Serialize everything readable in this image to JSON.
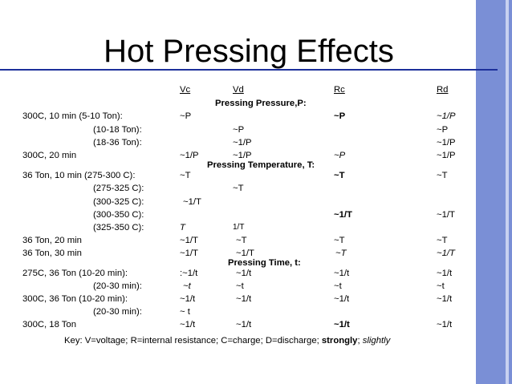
{
  "title": "Hot Pressing Effects",
  "headers": [
    "Vc",
    "Vd",
    "Rc",
    "Rd"
  ],
  "sections": {
    "pressure": "Pressing Pressure,P:",
    "temperature": "Pressing Temperature, T:",
    "time": "Pressing Time, t:"
  },
  "rows": [
    {
      "label": "300C, 10 min  (5-10 Ton):",
      "vc": "~P",
      "vd": "",
      "rc": "~P",
      "rd": "~1/P"
    },
    {
      "label": "(10-18 Ton):",
      "vc": "",
      "vd": "~P",
      "rc": "",
      "rd": "~P"
    },
    {
      "label": "(18-36 Ton):",
      "vc": "",
      "vd": "~1/P",
      "rc": "",
      "rd": "~1/P"
    },
    {
      "label": "300C, 20 min",
      "vc": "~1/P",
      "vd": "~1/P",
      "rc": "~P",
      "rd": "~1/P"
    },
    {
      "label": "36 Ton, 10 min (275-300 C):",
      "vc": "~T",
      "vd": "",
      "rc": "~T",
      "rd": "~T"
    },
    {
      "label": "(275-325 C):",
      "vc": "",
      "vd": "~T",
      "rc": "",
      "rd": ""
    },
    {
      "label": "(300-325 C):",
      "vc": "~1/T",
      "vd": "",
      "rc": "",
      "rd": ""
    },
    {
      "label": "(300-350 C):",
      "vc": "",
      "vd": "",
      "rc": "~1/T",
      "rd": "~1/T"
    },
    {
      "label": "(325-350 C):",
      "vc": "T",
      "vd": "1/T",
      "rc": "",
      "rd": ""
    },
    {
      "label": "36 Ton, 20 min",
      "vc": "~1/T",
      "vd": "~T",
      "rc": "~T",
      "rd": "~T"
    },
    {
      "label": "36 Ton, 30 min",
      "vc": "~1/T",
      "vd": "~1/T",
      "rc": "~T",
      "rd": "~1/T"
    },
    {
      "label": "275C, 36 Ton (10-20 min):",
      "vc": ":~1/t",
      "vd": "~1/t",
      "rc": "~1/t",
      "rd": "~1/t"
    },
    {
      "label": "(20-30 min):",
      "vc": "~t",
      "vd": "~t",
      "rc": "~t",
      "rd": "~t"
    },
    {
      "label": "300C, 36 Ton (10-20 min):",
      "vc": "~1/t",
      "vd": "~1/t",
      "rc": "~1/t",
      "rd": "~1/t"
    },
    {
      "label": "(20-30 min):",
      "vc": "~ t",
      "vd": "",
      "rc": "",
      "rd": ""
    },
    {
      "label": "300C, 18 Ton",
      "vc": "~1/t",
      "vd": "~1/t",
      "rc": "~1/t",
      "rd": "~1/t"
    }
  ],
  "key": {
    "text": "Key: V=voltage; R=internal resistance; C=charge; D=discharge; ",
    "strong": "strongly",
    "sep": "; ",
    "slight": "slightly"
  }
}
